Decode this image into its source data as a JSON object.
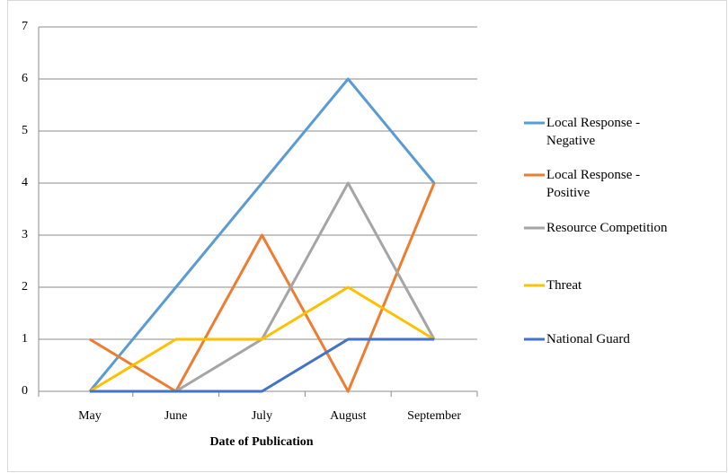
{
  "chart_data": {
    "type": "line",
    "x_label": "Date of Publication",
    "categories": [
      "May",
      "June",
      "July",
      "August",
      "September"
    ],
    "series": [
      {
        "name": "Local Response - Negative",
        "color": "#5b9bd5",
        "values": [
          0,
          2,
          4,
          6,
          4
        ]
      },
      {
        "name": "Local Response - Positive",
        "color": "#ed7d31",
        "values": [
          1,
          0,
          3,
          0,
          4
        ]
      },
      {
        "name": "Resource Competition",
        "color": "#a5a5a5",
        "values": [
          0,
          0,
          1,
          4,
          1
        ]
      },
      {
        "name": "Threat",
        "color": "#ffc000",
        "values": [
          0,
          1,
          1,
          2,
          1
        ]
      },
      {
        "name": "National Guard",
        "color": "#4472c4",
        "values": [
          0,
          0,
          0,
          1,
          1
        ]
      }
    ],
    "ylim": [
      0,
      7
    ],
    "yticks": [
      0,
      1,
      2,
      3,
      4,
      5,
      6,
      7
    ],
    "grid": true,
    "legend": "right"
  }
}
